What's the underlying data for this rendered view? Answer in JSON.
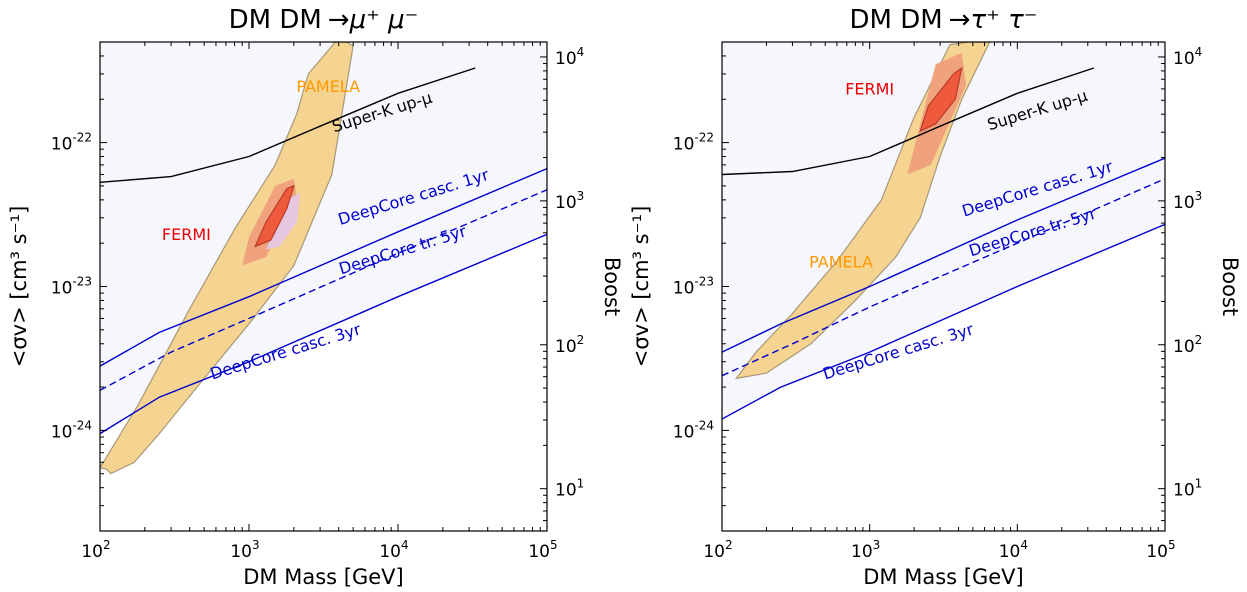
{
  "chart_data": [
    {
      "type": "line",
      "title": "DM DM→μ⁺ μ⁻",
      "title_main": "DM DM",
      "title_sym": "→μ⁺ μ⁻",
      "xlabel": "DM Mass [GeV]",
      "ylabel": "<σv> [cm³ s⁻¹]",
      "ylabel_right": "Boost",
      "xscale": "log",
      "yscale": "log",
      "xlim": [
        100,
        100000
      ],
      "ylim": [
        2e-25,
        5e-22
      ],
      "x_ticks": [
        {
          "base": "10",
          "exp": "2"
        },
        {
          "base": "10",
          "exp": "3"
        },
        {
          "base": "10",
          "exp": "4"
        },
        {
          "base": "10",
          "exp": "5"
        }
      ],
      "y_ticks": [
        {
          "base": "10",
          "exp": "-24"
        },
        {
          "base": "10",
          "exp": "-23"
        },
        {
          "base": "10",
          "exp": "-22"
        }
      ],
      "boost_ticks": [
        {
          "base": "10",
          "exp": "1"
        },
        {
          "base": "10",
          "exp": "2"
        },
        {
          "base": "10",
          "exp": "3"
        },
        {
          "base": "10",
          "exp": "4"
        }
      ],
      "boost_per_sigma": 2.54e+25,
      "series": [
        {
          "name": "Super-K up-μ",
          "color": "#000000",
          "style": "solid",
          "fill": "#e6e6f8",
          "x": [
            100,
            300,
            1000,
            3000,
            10000,
            33000
          ],
          "y": [
            5.3e-23,
            5.8e-23,
            8e-23,
            1.3e-22,
            2.2e-22,
            3.3e-22
          ]
        },
        {
          "name": "DeepCore casc. 1yr",
          "color": "#0000cc",
          "style": "solid",
          "fill": "#ececfb",
          "x": [
            100,
            250,
            1000,
            10000,
            100000
          ],
          "y": [
            2.8e-24,
            4.8e-24,
            8.5e-24,
            2.4e-23,
            6.6e-23
          ]
        },
        {
          "name": "DeepCore tr. 5yr",
          "color": "#0000cc",
          "style": "dashed",
          "fill": "",
          "x": [
            100,
            300,
            1000,
            10000,
            100000
          ],
          "y": [
            1.9e-24,
            3.5e-24,
            6e-24,
            1.7e-23,
            4.7e-23
          ]
        },
        {
          "name": "DeepCore casc. 3yr",
          "color": "#0000cc",
          "style": "solid",
          "fill": "#f6f6fd",
          "x": [
            100,
            250,
            1000,
            10000,
            100000
          ],
          "y": [
            9.5e-25,
            1.7e-24,
            3e-24,
            8.5e-24,
            2.3e-23
          ]
        }
      ],
      "regions": [
        {
          "name": "PAMELA",
          "fill": "#f5d391",
          "stroke": "#a89878",
          "x": [
            110,
            118,
            170,
            250,
            500,
            1000,
            2000,
            3600,
            5000,
            4500,
            3800,
            2500,
            2100,
            1500,
            800,
            400,
            180,
            100,
            100
          ],
          "y": [
            5.4e-25,
            5e-25,
            6e-25,
            9.5e-25,
            2.3e-24,
            5.5e-24,
            1.4e-23,
            6e-23,
            4.7e-22,
            5e-22,
            5e-22,
            3e-22,
            1.6e-22,
            7e-23,
            2.5e-23,
            7e-24,
            1.5e-24,
            5.5e-25,
            5.5e-25
          ]
        },
        {
          "name": "",
          "fill": "#f0a27c",
          "stroke": "",
          "x": [
            900,
            1300,
            2100,
            2000,
            1500,
            1000,
            900
          ],
          "y": [
            1.4e-23,
            1.6e-23,
            4e-23,
            5.6e-23,
            5e-23,
            2.2e-23,
            1.4e-23
          ]
        },
        {
          "name": "",
          "fill": "#e5c8e0",
          "stroke": "",
          "x": [
            1300,
            1600,
            2100,
            2200,
            1800,
            1300
          ],
          "y": [
            1.8e-23,
            1.9e-23,
            2.8e-23,
            4.5e-23,
            4e-23,
            1.8e-23
          ]
        },
        {
          "name": "FERMI",
          "fill": "#ef5a3c",
          "stroke": "#b83a28",
          "x": [
            1100,
            1400,
            1800,
            2000,
            1800,
            1300,
            1100
          ],
          "y": [
            1.9e-23,
            2.1e-23,
            3.5e-23,
            5e-23,
            4.8e-23,
            2.8e-23,
            1.9e-23
          ]
        }
      ],
      "annotations": [
        {
          "text": "PAMELA",
          "color": "#ff9900",
          "x": 3400,
          "y": 2.25e-22,
          "rotate": 0,
          "anchor": "middle"
        },
        {
          "text": "FERMI",
          "color": "#ee0000",
          "x": 380,
          "y": 2.1e-23,
          "rotate": 0,
          "anchor": "middle"
        },
        {
          "text": "Super-K up-μ",
          "color": "#000000",
          "x": 8000,
          "y": 1.5e-22,
          "rotate": -17,
          "anchor": "middle"
        },
        {
          "text": "DeepCore casc. 1yr",
          "color": "#0000cc",
          "x": 13000,
          "y": 3.85e-23,
          "rotate": -17,
          "anchor": "middle"
        },
        {
          "text": "DeepCore tr. 5yr",
          "color": "#0000cc",
          "x": 11000,
          "y": 1.65e-23,
          "rotate": -17,
          "anchor": "middle"
        },
        {
          "text": "DeepCore casc. 3yr",
          "color": "#0000cc",
          "x": 1800,
          "y": 3.25e-24,
          "rotate": -17,
          "anchor": "middle"
        }
      ]
    },
    {
      "type": "line",
      "title": "DM DM→τ⁺ τ⁻",
      "title_main": "DM DM",
      "title_sym": "→τ⁺ τ⁻",
      "xlabel": "DM Mass [GeV]",
      "ylabel": "<σv> [cm³ s⁻¹]",
      "ylabel_right": "Boost",
      "xscale": "log",
      "yscale": "log",
      "xlim": [
        100,
        100000
      ],
      "ylim": [
        2e-25,
        5e-22
      ],
      "x_ticks": [
        {
          "base": "10",
          "exp": "2"
        },
        {
          "base": "10",
          "exp": "3"
        },
        {
          "base": "10",
          "exp": "4"
        },
        {
          "base": "10",
          "exp": "5"
        }
      ],
      "y_ticks": [
        {
          "base": "10",
          "exp": "-24"
        },
        {
          "base": "10",
          "exp": "-23"
        },
        {
          "base": "10",
          "exp": "-22"
        }
      ],
      "boost_ticks": [
        {
          "base": "10",
          "exp": "1"
        },
        {
          "base": "10",
          "exp": "2"
        },
        {
          "base": "10",
          "exp": "3"
        },
        {
          "base": "10",
          "exp": "4"
        }
      ],
      "boost_per_sigma": 2.54e+25,
      "series": [
        {
          "name": "Super-K up-μ",
          "color": "#000000",
          "style": "solid",
          "fill": "#e6e6f8",
          "x": [
            100,
            300,
            1000,
            3000,
            10000,
            33000
          ],
          "y": [
            6e-23,
            6.3e-23,
            8e-23,
            1.3e-22,
            2.2e-22,
            3.3e-22
          ]
        },
        {
          "name": "DeepCore casc. 1yr",
          "color": "#0000cc",
          "style": "solid",
          "fill": "#ececfb",
          "x": [
            100,
            250,
            1000,
            10000,
            100000
          ],
          "y": [
            3.5e-24,
            5.5e-24,
            1e-23,
            2.9e-23,
            7.8e-23
          ]
        },
        {
          "name": "DeepCore tr. 5yr",
          "color": "#0000cc",
          "style": "dashed",
          "fill": "",
          "x": [
            100,
            300,
            1000,
            10000,
            100000
          ],
          "y": [
            2.4e-24,
            4e-24,
            7.2e-24,
            2e-23,
            5.6e-23
          ]
        },
        {
          "name": "DeepCore casc. 3yr",
          "color": "#0000cc",
          "style": "solid",
          "fill": "#f6f6fd",
          "x": [
            100,
            250,
            1000,
            10000,
            100000
          ],
          "y": [
            1.2e-24,
            2e-24,
            3.5e-24,
            1e-23,
            2.7e-23
          ]
        }
      ],
      "regions": [
        {
          "name": "PAMELA",
          "fill": "#f5d391",
          "stroke": "#a89878",
          "x": [
            125,
            200,
            400,
            800,
            1500,
            2200,
            3000,
            4200,
            6500,
            6000,
            4700,
            3500,
            2800,
            2000,
            1200,
            600,
            300,
            170,
            125
          ],
          "y": [
            2.3e-24,
            2.5e-24,
            4e-24,
            8e-24,
            1.6e-23,
            3e-23,
            8e-23,
            2e-22,
            5e-22,
            5e-22,
            5e-22,
            4.8e-22,
            3e-22,
            1.5e-22,
            4e-23,
            1.5e-23,
            6.5e-24,
            3.5e-24,
            2.3e-24
          ]
        },
        {
          "name": "",
          "fill": "#f0a27c",
          "stroke": "",
          "x": [
            1800,
            2600,
            4500,
            4200,
            2800,
            1800
          ],
          "y": [
            6e-23,
            7e-23,
            2.5e-22,
            4.2e-22,
            3.5e-22,
            6e-23
          ]
        },
        {
          "name": "FERMI",
          "fill": "#ef5a3c",
          "stroke": "#b83a28",
          "x": [
            2200,
            2800,
            3800,
            4200,
            3700,
            2500,
            2200
          ],
          "y": [
            1.2e-22,
            1.35e-22,
            2e-22,
            3.3e-22,
            3e-22,
            1.8e-22,
            1.2e-22
          ]
        }
      ],
      "annotations": [
        {
          "text": "FERMI",
          "color": "#ee0000",
          "x": 1000,
          "y": 2.15e-22,
          "rotate": 0,
          "anchor": "middle"
        },
        {
          "text": "PAMELA",
          "color": "#ff9900",
          "x": 640,
          "y": 1.35e-23,
          "rotate": 0,
          "anchor": "middle"
        },
        {
          "text": "Super-K up-μ",
          "color": "#000000",
          "x": 14000,
          "y": 1.55e-22,
          "rotate": -17,
          "anchor": "middle"
        },
        {
          "text": "DeepCore casc. 1yr",
          "color": "#0000cc",
          "x": 14000,
          "y": 4.4e-23,
          "rotate": -17,
          "anchor": "middle"
        },
        {
          "text": "DeepCore tr. 5yr",
          "color": "#0000cc",
          "x": 13000,
          "y": 2.2e-23,
          "rotate": -17,
          "anchor": "middle"
        },
        {
          "text": "DeepCore casc. 3yr",
          "color": "#0000cc",
          "x": 1600,
          "y": 3.25e-24,
          "rotate": -17,
          "anchor": "middle"
        }
      ]
    }
  ]
}
